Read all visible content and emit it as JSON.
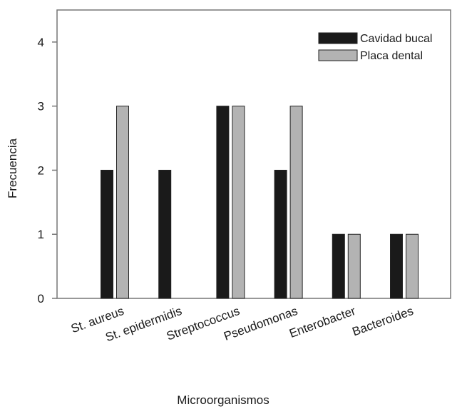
{
  "chart_data": {
    "type": "bar",
    "categories": [
      "St. aureus",
      "St. epidermidis",
      "Streptococcus",
      "Pseudomonas",
      "Enterobacter",
      "Bacteroides"
    ],
    "series": [
      {
        "name": "Cavidad bucal",
        "values": [
          2,
          2,
          3,
          2,
          1,
          1
        ],
        "color": "#1a1a1a"
      },
      {
        "name": "Placa dental",
        "values": [
          3,
          0,
          3,
          3,
          1,
          1
        ],
        "color": "#b3b3b3"
      }
    ],
    "title": "",
    "xlabel": "Microorganismos",
    "ylabel": "Frecuencia",
    "ylim": [
      0,
      4.5
    ],
    "yticks": [
      0,
      1,
      2,
      3,
      4
    ],
    "grid": false,
    "legend_position": "top-right"
  }
}
